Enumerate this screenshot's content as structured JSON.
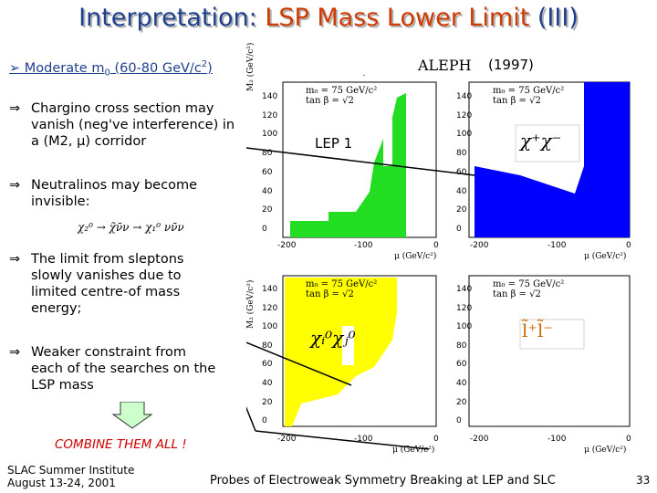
{
  "slide": {
    "title_prefix": "Interpretation: ",
    "title_highlight": "LSP Mass Lower Limit",
    "title_suffix": " (III)",
    "header_bullet_text": "Moderate m",
    "header_bullet_sub": "0",
    "header_bullet_range": " (60-80 GeV/c",
    "header_bullet_sup": "2",
    "header_bullet_end": ")",
    "experiment": "ALEPH",
    "year": "(1997)",
    "bullets": [
      "Chargino cross section may vanish (neg've interference) in a (M2, μ) corridor",
      "Neutralinos may become invisible:",
      "The limit from sleptons slowly vanishes due to limited centre-of mass energy;",
      "Weaker constraint from each of the searches on the LSP mass"
    ],
    "neutralino_decay": "χ₂⁰ → χ̃ν̄ν → χ₁⁰ νν̄ν",
    "combine": "COMBINE THEM ALL !",
    "lep1_label": "LEP 1",
    "footer_left_1": "SLAC Summer Institute",
    "footer_left_2": "August 13-24, 2001",
    "footer_center": "Probes of Electroweak Symmetry Breaking at LEP and SLC",
    "page_number": "33"
  },
  "panels": {
    "param_m0": "m₀ = 75 GeV/c²",
    "param_tanb": "tan β = √2",
    "axis_y": "M₂ (GeV/c²)",
    "axis_x": "μ (GeV/c²)",
    "yticks": [
      "140",
      "120",
      "100",
      "80",
      "60",
      "40",
      "20",
      "0"
    ],
    "xticks_left": [
      "-200",
      "-100",
      "0"
    ],
    "xticks_right": [
      "-200",
      "-100",
      "0"
    ],
    "label_chargino": "χ⁺χ⁻",
    "label_neutralino": "χᵢ⁰χⱼ⁰",
    "label_slepton": "l̃⁺l̃⁻"
  },
  "colors": {
    "title": "#1f3f8f",
    "title_highlight": "#d03a00",
    "green_region": "#22dd22",
    "blue_region": "#0000ff",
    "yellow_region": "#ffff00",
    "combine_text": "#cc0000"
  }
}
